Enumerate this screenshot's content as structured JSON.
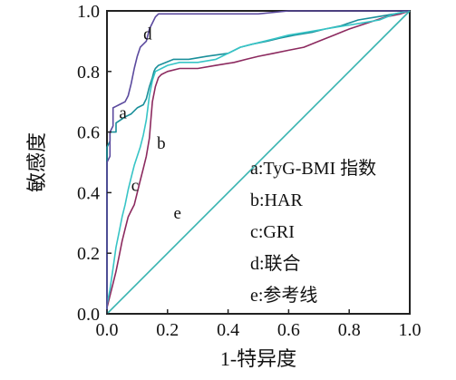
{
  "chart_data": {
    "type": "line",
    "xlabel": "1-特异度",
    "ylabel": "敏感度",
    "xlim": [
      0,
      1
    ],
    "ylim": [
      0,
      1
    ],
    "x_ticks": [
      "0.0",
      "0.2",
      "0.4",
      "0.6",
      "0.8",
      "1.0"
    ],
    "y_ticks": [
      "0.0",
      "0.2",
      "0.4",
      "0.6",
      "0.8",
      "1.0"
    ],
    "grid": false,
    "legend_position": "right",
    "legend": [
      {
        "key": "a",
        "text": "a:TyG-BMI 指数"
      },
      {
        "key": "b",
        "text": "b:HAR"
      },
      {
        "key": "c",
        "text": "c:GRI"
      },
      {
        "key": "d",
        "text": "d:联合"
      },
      {
        "key": "e",
        "text": "e:参考线"
      }
    ],
    "series": [
      {
        "key": "a",
        "color": "#1a8f9a",
        "x": [
          0,
          0,
          0.01,
          0.01,
          0.03,
          0.03,
          0.06,
          0.08,
          0.1,
          0.12,
          0.13,
          0.14,
          0.15,
          0.155,
          0.16,
          0.17,
          0.22,
          0.27,
          0.33,
          0.4,
          0.44,
          0.48,
          0.53,
          0.57,
          0.62,
          0.68,
          0.72,
          0.77,
          0.83,
          0.89,
          0.95,
          1.0
        ],
        "y": [
          0,
          0.55,
          0.57,
          0.6,
          0.6,
          0.63,
          0.65,
          0.66,
          0.68,
          0.69,
          0.71,
          0.75,
          0.78,
          0.8,
          0.81,
          0.82,
          0.84,
          0.84,
          0.85,
          0.86,
          0.88,
          0.89,
          0.9,
          0.91,
          0.92,
          0.93,
          0.94,
          0.95,
          0.97,
          0.98,
          0.99,
          1.0
        ]
      },
      {
        "key": "b",
        "color": "#8c2a5f",
        "x": [
          0,
          0,
          0.01,
          0.02,
          0.03,
          0.04,
          0.05,
          0.06,
          0.07,
          0.08,
          0.09,
          0.1,
          0.11,
          0.12,
          0.13,
          0.14,
          0.145,
          0.15,
          0.16,
          0.17,
          0.18,
          0.2,
          0.24,
          0.3,
          0.36,
          0.42,
          0.46,
          0.5,
          0.55,
          0.6,
          0.65,
          0.7,
          0.75,
          0.8,
          0.86,
          0.92,
          0.97,
          1.0
        ],
        "y": [
          0,
          0.02,
          0.06,
          0.1,
          0.14,
          0.19,
          0.24,
          0.28,
          0.32,
          0.34,
          0.36,
          0.4,
          0.44,
          0.48,
          0.52,
          0.58,
          0.64,
          0.7,
          0.75,
          0.78,
          0.79,
          0.8,
          0.81,
          0.81,
          0.82,
          0.83,
          0.84,
          0.85,
          0.86,
          0.87,
          0.88,
          0.9,
          0.92,
          0.94,
          0.96,
          0.98,
          0.99,
          1.0
        ]
      },
      {
        "key": "c",
        "color": "#37c4c6",
        "x": [
          0,
          0,
          0.01,
          0.02,
          0.03,
          0.04,
          0.05,
          0.06,
          0.07,
          0.08,
          0.09,
          0.1,
          0.11,
          0.12,
          0.13,
          0.14,
          0.15,
          0.16,
          0.18,
          0.2,
          0.24,
          0.3,
          0.36,
          0.4,
          0.44,
          0.48,
          0.52,
          0.56,
          0.6,
          0.66,
          0.72,
          0.78,
          0.84,
          0.9,
          0.95,
          1.0
        ],
        "y": [
          0,
          0.03,
          0.08,
          0.15,
          0.22,
          0.27,
          0.32,
          0.36,
          0.41,
          0.45,
          0.49,
          0.52,
          0.55,
          0.59,
          0.64,
          0.72,
          0.77,
          0.8,
          0.81,
          0.82,
          0.83,
          0.83,
          0.84,
          0.86,
          0.88,
          0.89,
          0.9,
          0.91,
          0.92,
          0.93,
          0.94,
          0.95,
          0.96,
          0.97,
          0.99,
          1.0
        ]
      },
      {
        "key": "d",
        "color": "#5b4a9e",
        "x": [
          0,
          0,
          0.01,
          0.01,
          0.02,
          0.02,
          0.04,
          0.06,
          0.07,
          0.08,
          0.09,
          0.1,
          0.11,
          0.12,
          0.13,
          0.14,
          0.15,
          0.16,
          0.17,
          0.18,
          0.19,
          0.2,
          0.3,
          0.4,
          0.5,
          0.6,
          0.7,
          0.8,
          0.9,
          1.0
        ],
        "y": [
          0,
          0.5,
          0.52,
          0.6,
          0.62,
          0.68,
          0.69,
          0.7,
          0.72,
          0.76,
          0.81,
          0.85,
          0.88,
          0.89,
          0.9,
          0.94,
          0.96,
          0.98,
          0.99,
          0.99,
          0.99,
          0.99,
          0.99,
          0.99,
          0.99,
          1.0,
          1.0,
          1.0,
          1.0,
          1.0
        ]
      },
      {
        "key": "e",
        "color": "#37b3b0",
        "x": [
          0,
          1
        ],
        "y": [
          0,
          1
        ]
      }
    ],
    "curve_labels": [
      {
        "text": "a",
        "x": 0.04,
        "y": 0.645
      },
      {
        "text": "b",
        "x": 0.165,
        "y": 0.545
      },
      {
        "text": "c",
        "x": 0.08,
        "y": 0.405
      },
      {
        "text": "d",
        "x": 0.12,
        "y": 0.905
      },
      {
        "text": "e",
        "x": 0.22,
        "y": 0.315
      }
    ]
  }
}
